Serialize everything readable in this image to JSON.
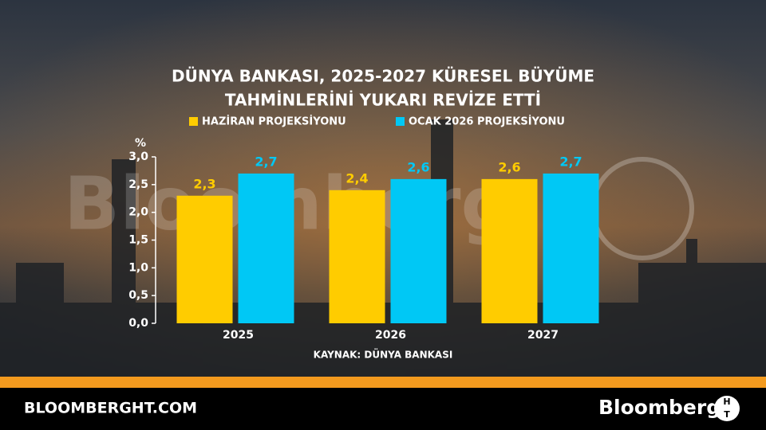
{
  "chart_data": {
    "type": "bar",
    "title": [
      "DÜNYA BANKASI, 2025-2027 KÜRESEL BÜYÜME",
      "TAHMİNLERİNİ YUKARI REVİZE ETTİ"
    ],
    "y_label": "%",
    "categories": [
      "2025",
      "2026",
      "2027"
    ],
    "series": [
      {
        "name": "HAZİRAN PROJEKSİYONU",
        "color": "#ffcc00",
        "values": [
          2.3,
          2.4,
          2.6
        ],
        "value_labels": [
          "2,3",
          "2,4",
          "2,6"
        ]
      },
      {
        "name": "OCAK 2026 PROJEKSİYONU",
        "color": "#00c8f5",
        "values": [
          2.7,
          2.6,
          2.7
        ],
        "value_labels": [
          "2,7",
          "2,6",
          "2,7"
        ]
      }
    ],
    "ylim": [
      0,
      3
    ],
    "yticks": [
      {
        "value": 0,
        "label": "0,0"
      },
      {
        "value": 0.5,
        "label": "0,5"
      },
      {
        "value": 1,
        "label": "1,0"
      },
      {
        "value": 1.5,
        "label": "1,5"
      },
      {
        "value": 2,
        "label": "2,0"
      },
      {
        "value": 2.5,
        "label": "2,5"
      },
      {
        "value": 3,
        "label": "3,0"
      }
    ],
    "source": "KAYNAK: DÜNYA BANKASI"
  },
  "watermark": "Bloomberg",
  "footer": {
    "site": "BLOOMBERGHT.COM",
    "brand": "Bloomberg",
    "logo": [
      "H",
      "T"
    ]
  }
}
